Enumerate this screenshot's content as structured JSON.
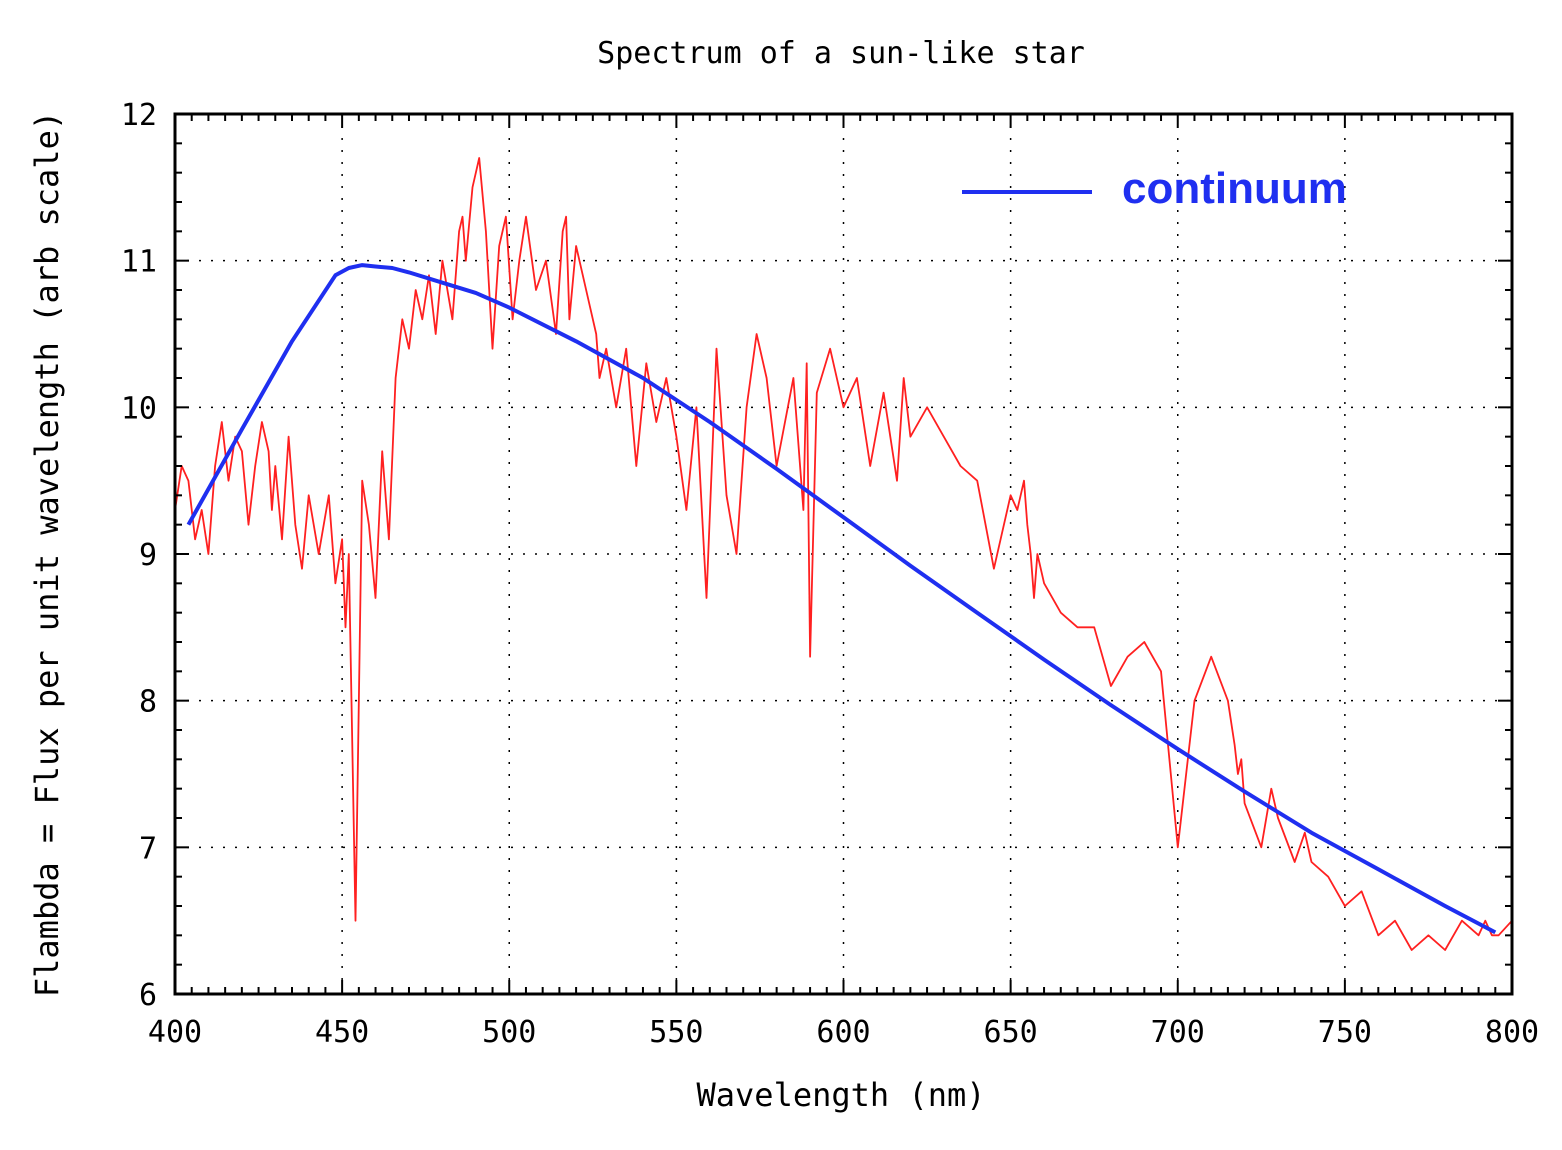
{
  "chart_data": {
    "type": "line",
    "title": "Spectrum of a sun-like star",
    "xlabel": "Wavelength (nm)",
    "ylabel": "Flambda = Flux per unit wavelength (arb scale)",
    "xlim": [
      400,
      800
    ],
    "ylim": [
      6,
      12
    ],
    "x_ticks": [
      400,
      450,
      500,
      550,
      600,
      650,
      700,
      750,
      800
    ],
    "y_ticks": [
      6,
      7,
      8,
      9,
      10,
      11,
      12
    ],
    "x_tick_labels": [
      "400",
      "450",
      "500",
      "550",
      "600",
      "650",
      "700",
      "750",
      "800"
    ],
    "y_tick_labels": [
      "6",
      "7",
      "8",
      "9",
      "10",
      "11",
      "12"
    ],
    "grid": true,
    "legend_position": "top-right",
    "series": [
      {
        "color": "#ff2020",
        "x": [
          400,
          402,
          404,
          406,
          408,
          410,
          412,
          414,
          416,
          418,
          420,
          422,
          424,
          426,
          428,
          429,
          430,
          432,
          434,
          436,
          438,
          440,
          443,
          446,
          448,
          450,
          451,
          452,
          454,
          456,
          458,
          460,
          462,
          464,
          466,
          468,
          470,
          472,
          474,
          476,
          478,
          480,
          483,
          485,
          486,
          487,
          489,
          491,
          493,
          495,
          497,
          499,
          501,
          503,
          505,
          508,
          511,
          514,
          516,
          517,
          518,
          520,
          522,
          524,
          526,
          527,
          529,
          532,
          535,
          538,
          541,
          544,
          547,
          550,
          553,
          556,
          559,
          562,
          565,
          568,
          571,
          574,
          577,
          580,
          585,
          588,
          589,
          590,
          592,
          596,
          600,
          604,
          608,
          612,
          616,
          618,
          620,
          625,
          630,
          635,
          640,
          645,
          650,
          652,
          654,
          655,
          656,
          657,
          658,
          660,
          665,
          670,
          675,
          680,
          685,
          690,
          695,
          700,
          705,
          710,
          715,
          717,
          718,
          719,
          720,
          725,
          728,
          730,
          735,
          738,
          740,
          745,
          750,
          755,
          760,
          765,
          770,
          775,
          780,
          785,
          790,
          792,
          794,
          796,
          800
        ],
        "y": [
          9.3,
          9.6,
          9.5,
          9.1,
          9.3,
          9.0,
          9.6,
          9.9,
          9.5,
          9.8,
          9.7,
          9.2,
          9.6,
          9.9,
          9.7,
          9.3,
          9.6,
          9.1,
          9.8,
          9.2,
          8.9,
          9.4,
          9.0,
          9.4,
          8.8,
          9.1,
          8.5,
          9.0,
          6.5,
          9.5,
          9.2,
          8.7,
          9.7,
          9.1,
          10.2,
          10.6,
          10.4,
          10.8,
          10.6,
          10.9,
          10.5,
          11.0,
          10.6,
          11.2,
          11.3,
          11.0,
          11.5,
          11.7,
          11.2,
          10.4,
          11.1,
          11.3,
          10.6,
          11.0,
          11.3,
          10.8,
          11.0,
          10.5,
          11.2,
          11.3,
          10.6,
          11.1,
          10.9,
          10.7,
          10.5,
          10.2,
          10.4,
          10.0,
          10.4,
          9.6,
          10.3,
          9.9,
          10.2,
          9.8,
          9.3,
          10.0,
          8.7,
          10.4,
          9.4,
          9.0,
          10.0,
          10.5,
          10.2,
          9.6,
          10.2,
          9.3,
          10.3,
          8.3,
          10.1,
          10.4,
          10.0,
          10.2,
          9.6,
          10.1,
          9.5,
          10.2,
          9.8,
          10.0,
          9.8,
          9.6,
          9.5,
          8.9,
          9.4,
          9.3,
          9.5,
          9.2,
          9.0,
          8.7,
          9.0,
          8.8,
          8.6,
          8.5,
          8.5,
          8.1,
          8.3,
          8.4,
          8.2,
          7.0,
          8.0,
          8.3,
          8.0,
          7.7,
          7.5,
          7.6,
          7.3,
          7.0,
          7.4,
          7.2,
          6.9,
          7.1,
          6.9,
          6.8,
          6.6,
          6.7,
          6.4,
          6.5,
          6.3,
          6.4,
          6.3,
          6.5,
          6.4,
          6.5,
          6.4,
          6.4,
          6.5
        ]
      },
      {
        "name": "continuum",
        "color": "#1f2ff0",
        "x": [
          404,
          420,
          435,
          448,
          452,
          456,
          460,
          465,
          470,
          480,
          490,
          500,
          520,
          540,
          560,
          580,
          600,
          620,
          640,
          660,
          680,
          700,
          720,
          740,
          760,
          780,
          795
        ],
        "y": [
          9.2,
          9.85,
          10.45,
          10.9,
          10.95,
          10.97,
          10.96,
          10.95,
          10.92,
          10.85,
          10.78,
          10.68,
          10.45,
          10.2,
          9.9,
          9.58,
          9.25,
          8.92,
          8.6,
          8.28,
          7.97,
          7.67,
          7.38,
          7.1,
          6.85,
          6.6,
          6.42
        ]
      }
    ]
  }
}
